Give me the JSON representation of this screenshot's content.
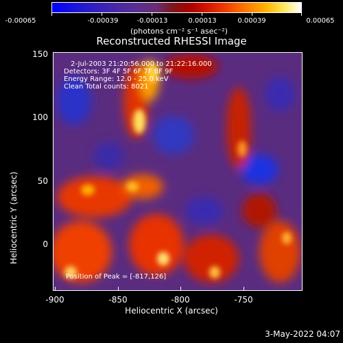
{
  "colorbar": {
    "tick_labels": [
      "-0.00065",
      "-0.00039",
      "-0.00013",
      "0.00013",
      "0.00039",
      "0.00065"
    ],
    "units": "(photons cm⁻² s⁻¹ asec⁻²)"
  },
  "title": "Reconstructed RHESSI Image",
  "info": {
    "time": "2-Jul-2003 21:20:56.000 to 21:22:16.000",
    "detectors": "Detectors: 3F 4F 5F 6F 7F 8F 9F",
    "energy": "Energy Range: 12.0 - 25.0 keV",
    "clean": "Clean     Total counts: 8021"
  },
  "peak": "Position of Peak = [-817,126]",
  "axes": {
    "xlabel": "Heliocentric X (arcsec)",
    "ylabel": "Heliocentric Y (arcsec)",
    "x_ticks": [
      "-900",
      "-850",
      "-800",
      "-750"
    ],
    "y_ticks": [
      "150",
      "100",
      "50",
      "0"
    ]
  },
  "footer": {
    "date": "3-May-2022 04:07"
  },
  "colors": {
    "background": "#000000",
    "low": "#0000ff",
    "mid": "#5a2c80",
    "high": "#ffff80"
  }
}
